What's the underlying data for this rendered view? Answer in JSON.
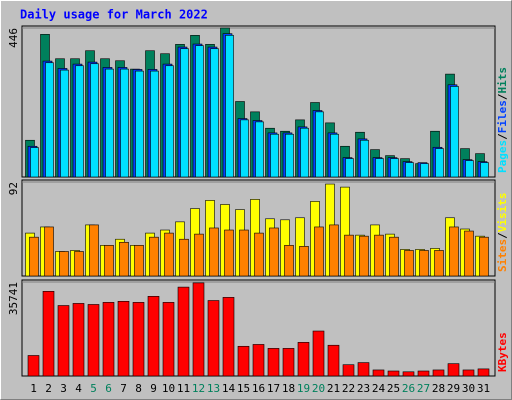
{
  "chart_data": [
    {
      "type": "bar",
      "title": "Daily usage for March 2022",
      "ylim": [
        0,
        446
      ],
      "yticks": [
        446
      ],
      "separator": "/",
      "series": [
        {
          "name": "Hits",
          "color": "#00805c",
          "values": [
            110,
            427,
            354,
            354,
            378,
            354,
            348,
            323,
            378,
            369,
            397,
            424,
            397,
            446,
            226,
            195,
            146,
            137,
            171,
            223,
            162,
            92,
            134,
            82,
            64,
            55,
            40,
            137,
            308,
            85,
            70
          ]
        },
        {
          "name": "Files",
          "color": "#0040ff",
          "values": [
            92,
            347,
            325,
            338,
            344,
            328,
            328,
            322,
            322,
            338,
            389,
            398,
            389,
            429,
            175,
            169,
            132,
            132,
            150,
            199,
            132,
            58,
            114,
            58,
            58,
            46,
            43,
            89,
            276,
            52,
            46
          ]
        },
        {
          "name": "Pages",
          "color": "#00e0ff",
          "values": [
            88,
            342,
            320,
            333,
            339,
            323,
            323,
            317,
            317,
            333,
            384,
            393,
            384,
            424,
            171,
            165,
            128,
            128,
            146,
            195,
            128,
            55,
            110,
            55,
            55,
            43,
            40,
            85,
            271,
            49,
            43
          ]
        }
      ]
    },
    {
      "type": "bar",
      "ylim": [
        0,
        92
      ],
      "yticks": [
        92
      ],
      "separator": "/",
      "series": [
        {
          "name": "Visits",
          "color": "#ffff00",
          "values": [
            42,
            48,
            24,
            25,
            50,
            30,
            36,
            30,
            42,
            45,
            53,
            66,
            74,
            70,
            65,
            75,
            56,
            55,
            57,
            73,
            90,
            87,
            40,
            50,
            41,
            26,
            26,
            27,
            57,
            46,
            39
          ]
        },
        {
          "name": "Sites",
          "color": "#ff8000",
          "values": [
            38,
            48,
            24,
            24,
            50,
            30,
            33,
            30,
            38,
            42,
            36,
            41,
            47,
            45,
            45,
            42,
            47,
            30,
            29,
            48,
            50,
            40,
            39,
            40,
            38,
            25,
            25,
            25,
            48,
            44,
            38
          ]
        }
      ]
    },
    {
      "type": "bar",
      "ylim": [
        0,
        35741
      ],
      "yticks": [
        35741
      ],
      "categories": [
        "1",
        "2",
        "3",
        "4",
        "5",
        "6",
        "7",
        "8",
        "9",
        "10",
        "11",
        "12",
        "13",
        "14",
        "15",
        "16",
        "17",
        "18",
        "19",
        "20",
        "21",
        "22",
        "23",
        "24",
        "25",
        "26",
        "27",
        "28",
        "29",
        "30",
        "31"
      ],
      "category_colors": [
        "#000000",
        "#000000",
        "#000000",
        "#000000",
        "#00805c",
        "#00805c",
        "#000000",
        "#000000",
        "#000000",
        "#000000",
        "#000000",
        "#00805c",
        "#00805c",
        "#000000",
        "#000000",
        "#000000",
        "#000000",
        "#000000",
        "#00805c",
        "#00805c",
        "#000000",
        "#000000",
        "#000000",
        "#000000",
        "#000000",
        "#00805c",
        "#00805c",
        "#000000",
        "#000000",
        "#000000",
        "#000000"
      ],
      "series": [
        {
          "name": "KBytes",
          "color": "#ff0000",
          "values": [
            7800,
            32200,
            26800,
            27600,
            27200,
            28000,
            28400,
            28000,
            30300,
            28000,
            33800,
            35400,
            28700,
            29900,
            11300,
            12000,
            10500,
            10500,
            12800,
            17100,
            11700,
            4300,
            5100,
            2300,
            1900,
            1600,
            1900,
            2300,
            4700,
            2300,
            2700
          ]
        }
      ]
    }
  ]
}
